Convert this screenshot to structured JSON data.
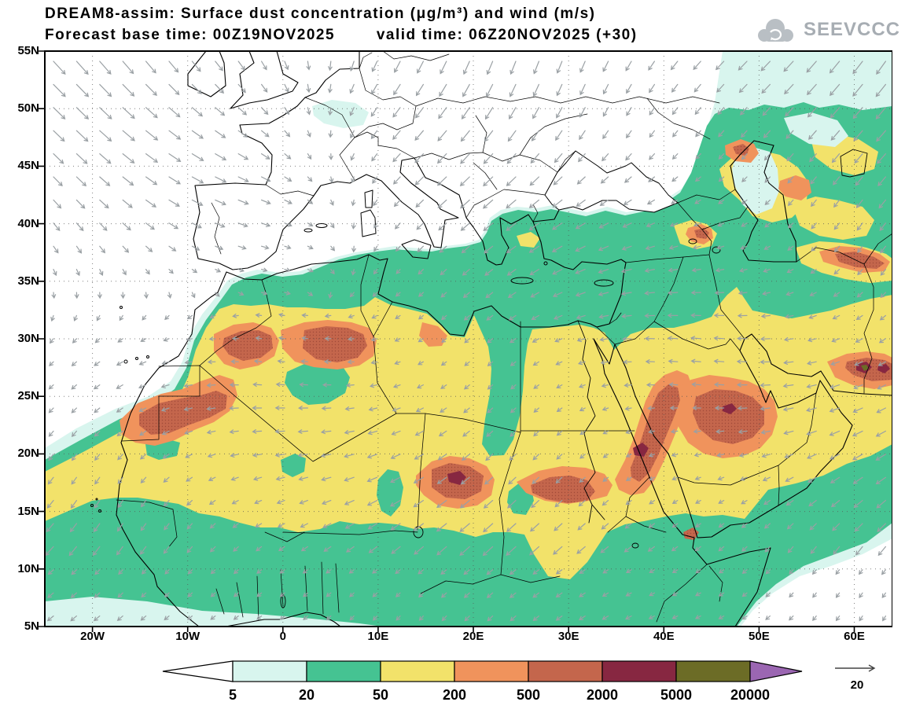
{
  "header": {
    "title": "DREAM8-assim: Surface dust concentration (μg/m³) and wind (m/s)",
    "base_time": "Forecast base time: 00Z19NOV2025",
    "valid_time": "valid time: 06Z20NOV2025 (+30)",
    "logo": "SEEVCCC"
  },
  "axes": {
    "lat": [
      "55N",
      "50N",
      "45N",
      "40N",
      "35N",
      "30N",
      "25N",
      "20N",
      "15N",
      "10N",
      "5N"
    ],
    "lon": [
      "20W",
      "10W",
      "0",
      "10E",
      "20E",
      "30E",
      "40E",
      "50E",
      "60E"
    ]
  },
  "legend": {
    "labels": [
      "5",
      "20",
      "50",
      "200",
      "500",
      "2000",
      "5000",
      "20000"
    ],
    "palette": [
      "lt5",
      "c5_20",
      "c20_50",
      "c50_200",
      "c200_500",
      "c500_2000",
      "c2000_5000",
      "c5000_20000",
      "gt20000"
    ],
    "wind_ref": "20"
  },
  "colors": {
    "lt5": "#ffffff",
    "c5_20": "#d8f5ee",
    "c20_50": "#45c392",
    "c50_200": "#f2e26a",
    "c200_500": "#f0935c",
    "c500_2000": "#c4664c",
    "c2000_5000": "#872741",
    "c5000_20000": "#6c6c26",
    "gt20000": "#9b66b2",
    "stipple": "#a04a38",
    "wind": "#9aa0a4",
    "coast": "#000000",
    "grid": "#555555",
    "frame": "#000000",
    "logo": "#b9bfc4",
    "sea_hole": "#ffffff"
  },
  "chart_data": {
    "type": "heatmap",
    "title": "DREAM8-assim: Surface dust concentration (μg/m³) and wind (m/s)",
    "subtitle": "Forecast base time: 00Z19NOV2025   valid time: 06Z20NOV2025 (+30)",
    "model": "DREAM8-assim",
    "variable": "surface dust concentration",
    "units": "μg/m³",
    "wind_variable": "wind",
    "wind_units": "m/s",
    "base_time": "00Z19NOV2025",
    "valid_time": "06Z20NOV2025",
    "forecast_hour": "+30",
    "lon_range_deg": [
      -25,
      64
    ],
    "lat_range_deg": [
      5,
      55
    ],
    "lat_ticks": [
      "55N",
      "50N",
      "45N",
      "40N",
      "35N",
      "30N",
      "25N",
      "20N",
      "15N",
      "10N",
      "5N"
    ],
    "lon_ticks": [
      "20W",
      "10W",
      "0",
      "10E",
      "20E",
      "30E",
      "40E",
      "50E",
      "60E"
    ],
    "contour_levels": [
      5,
      20,
      50,
      200,
      500,
      2000,
      5000,
      20000
    ],
    "level_colors": [
      "#ffffff",
      "#d8f5ee",
      "#45c392",
      "#f2e26a",
      "#f0935c",
      "#c4664c",
      "#872741",
      "#6c6c26",
      "#9b66b2"
    ],
    "legend_orientation": "horizontal-bottom",
    "wind_reference_ms": 20,
    "grid": "dotted graticule every 5 deg lat / 10 deg lon"
  }
}
